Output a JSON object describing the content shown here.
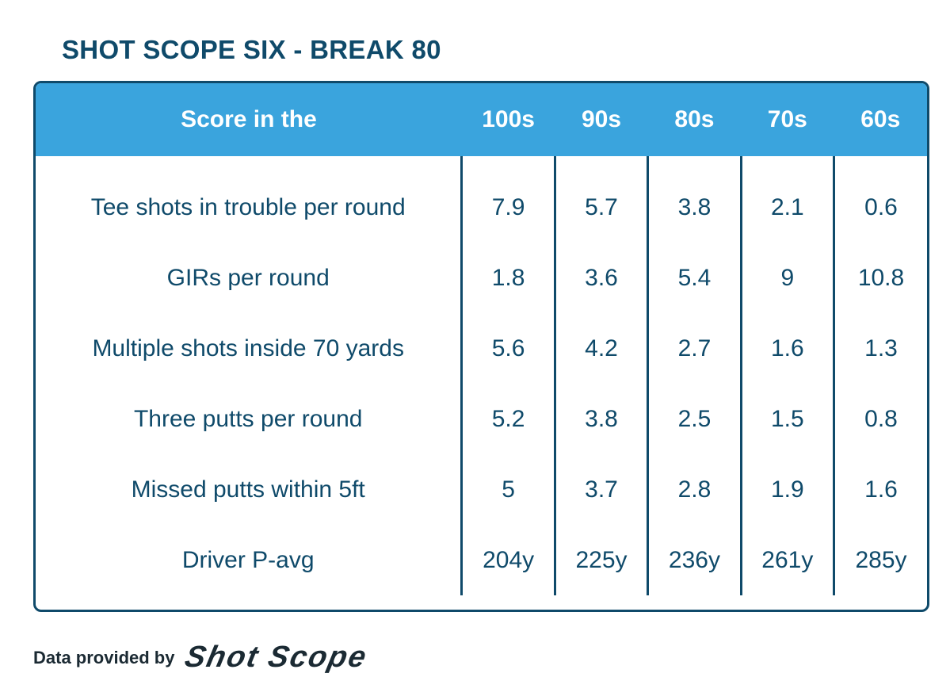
{
  "title": "SHOT SCOPE SIX - BREAK 80",
  "chart_data": {
    "type": "table",
    "header_label": "Score in the",
    "columns": [
      "100s",
      "90s",
      "80s",
      "70s",
      "60s"
    ],
    "rows": [
      {
        "label": "Tee shots in trouble per round",
        "values": [
          "7.9",
          "5.7",
          "3.8",
          "2.1",
          "0.6"
        ]
      },
      {
        "label": "GIRs per round",
        "values": [
          "1.8",
          "3.6",
          "5.4",
          "9",
          "10.8"
        ]
      },
      {
        "label": "Multiple shots inside 70 yards",
        "values": [
          "5.6",
          "4.2",
          "2.7",
          "1.6",
          "1.3"
        ]
      },
      {
        "label": "Three putts per round",
        "values": [
          "5.2",
          "3.8",
          "2.5",
          "1.5",
          "0.8"
        ]
      },
      {
        "label": "Missed putts within 5ft",
        "values": [
          "5",
          "3.7",
          "2.8",
          "1.9",
          "1.6"
        ]
      },
      {
        "label": "Driver P-avg",
        "values": [
          "204y",
          "225y",
          "236y",
          "261y",
          "285y"
        ]
      }
    ]
  },
  "footer": {
    "text": "Data provided by",
    "logo_text": "Shot Scope"
  },
  "colors": {
    "header_bg": "#3aa4dd",
    "text": "#0f4a6a",
    "border": "#0f4a6a"
  }
}
